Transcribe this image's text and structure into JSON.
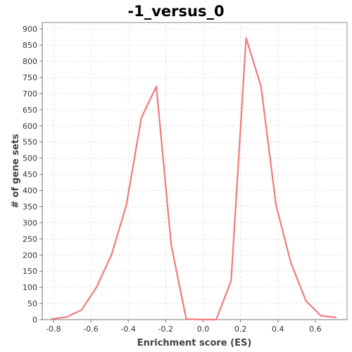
{
  "chart_data": {
    "type": "line",
    "title": "-1_versus_0",
    "xlabel": "Enrichment score (ES)",
    "ylabel": "# of gene sets",
    "xlim": [
      -0.86,
      0.77
    ],
    "ylim": [
      0,
      920
    ],
    "xticks": [
      -0.8,
      -0.6,
      -0.4,
      -0.2,
      0.0,
      0.2,
      0.4,
      0.6
    ],
    "xtick_labels": [
      "-0.8",
      "-0.6",
      "-0.4",
      "-0.2",
      "0.0",
      "0.2",
      "0.4",
      "0.6"
    ],
    "yticks": [
      0,
      50,
      100,
      150,
      200,
      250,
      300,
      350,
      400,
      450,
      500,
      550,
      600,
      650,
      700,
      750,
      800,
      850,
      900
    ],
    "grid": true,
    "legend": "none",
    "series": [
      {
        "color": "#f07b7b",
        "points": [
          {
            "x": -0.81,
            "y": 2
          },
          {
            "x": -0.73,
            "y": 8
          },
          {
            "x": -0.65,
            "y": 30
          },
          {
            "x": -0.57,
            "y": 100
          },
          {
            "x": -0.49,
            "y": 200
          },
          {
            "x": -0.41,
            "y": 355
          },
          {
            "x": -0.33,
            "y": 625
          },
          {
            "x": -0.25,
            "y": 722
          },
          {
            "x": -0.17,
            "y": 230
          },
          {
            "x": -0.09,
            "y": 2
          },
          {
            "x": -0.01,
            "y": 0
          },
          {
            "x": 0.07,
            "y": 0
          },
          {
            "x": 0.15,
            "y": 120
          },
          {
            "x": 0.23,
            "y": 872
          },
          {
            "x": 0.31,
            "y": 722
          },
          {
            "x": 0.39,
            "y": 355
          },
          {
            "x": 0.47,
            "y": 175
          },
          {
            "x": 0.55,
            "y": 58
          },
          {
            "x": 0.63,
            "y": 12
          },
          {
            "x": 0.71,
            "y": 7
          }
        ]
      }
    ]
  }
}
